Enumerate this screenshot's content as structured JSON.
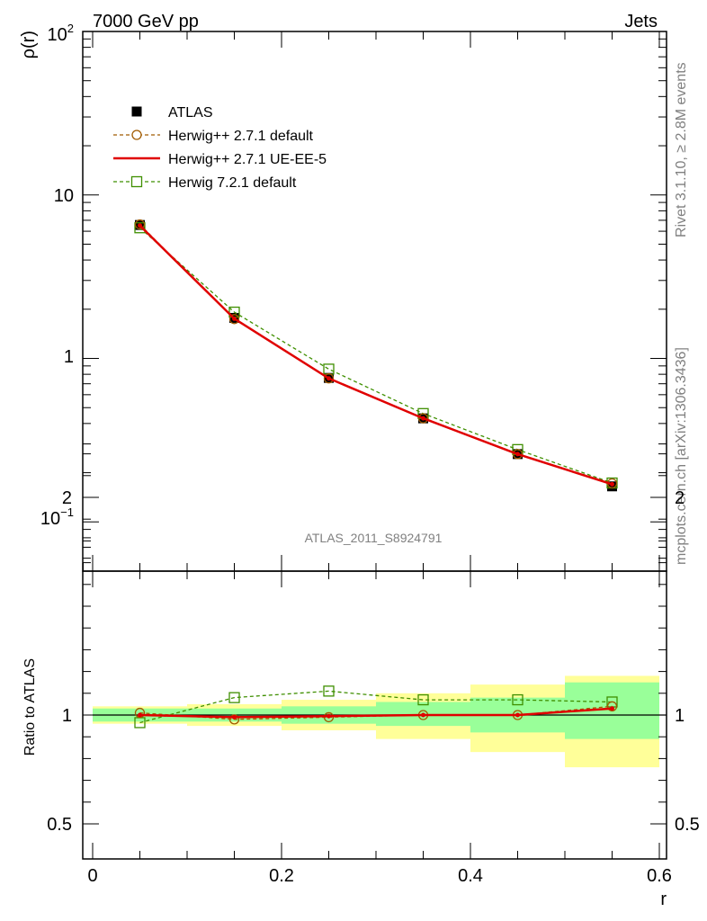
{
  "header": {
    "left": "7000 GeV pp",
    "right": "Jets"
  },
  "side_labels": {
    "rivet": "Rivet 3.1.10, ≥ 2.8M events",
    "mcplots": "mcplots.cern.ch [arXiv:1306.3436]"
  },
  "analysis_id": "ATLAS_2011_S8924791",
  "chart_data": [
    {
      "type": "line",
      "ylabel": "ρ(r)",
      "yscale": "log",
      "ylim": [
        0.05,
        100
      ],
      "xlim": [
        -0.015,
        0.6
      ],
      "ytick_labels": [
        "10−1",
        "1",
        "10",
        "10²"
      ],
      "legend_position": "top-left",
      "x": [
        0.05,
        0.15,
        0.25,
        0.35,
        0.45,
        0.55
      ],
      "x_bins": [
        [
          0.0,
          0.1
        ],
        [
          0.1,
          0.2
        ],
        [
          0.2,
          0.3
        ],
        [
          0.3,
          0.4
        ],
        [
          0.4,
          0.5
        ],
        [
          0.5,
          0.6
        ]
      ],
      "series": [
        {
          "name": "ATLAS",
          "style": "data",
          "color": "#000000",
          "values": [
            6.55,
            1.77,
            0.76,
            0.43,
            0.26,
            0.165
          ]
        },
        {
          "name": "Herwig++ 2.7.1 default",
          "style": "dashed-circle",
          "color": "#a05a00",
          "values": [
            6.6,
            1.74,
            0.755,
            0.43,
            0.26,
            0.172
          ]
        },
        {
          "name": "Herwig++ 2.7.1 UE-EE-5",
          "style": "solid",
          "color": "#e00000",
          "values": [
            6.5,
            1.75,
            0.755,
            0.43,
            0.26,
            0.17
          ]
        },
        {
          "name": "Herwig 7.2.1 default",
          "style": "dashed-square",
          "color": "#3f8f00",
          "values": [
            6.3,
            1.92,
            0.86,
            0.46,
            0.277,
            0.173
          ]
        }
      ]
    },
    {
      "type": "line",
      "ylabel": "Ratio to ATLAS",
      "xlabel": "r",
      "ylim": [
        0.4,
        2.3
      ],
      "yticks": [
        0.5,
        1,
        2
      ],
      "ytick_labels": [
        "0.5",
        "1",
        "2"
      ],
      "xticks": [
        0,
        0.2,
        0.4,
        0.6
      ],
      "xtick_labels": [
        "0",
        "0.2",
        "0.4",
        "0.6"
      ],
      "x": [
        0.05,
        0.15,
        0.25,
        0.35,
        0.45,
        0.55
      ],
      "bands": {
        "bins": [
          [
            0.0,
            0.1
          ],
          [
            0.1,
            0.2
          ],
          [
            0.2,
            0.3
          ],
          [
            0.3,
            0.4
          ],
          [
            0.4,
            0.5
          ],
          [
            0.5,
            0.6
          ]
        ],
        "inner": [
          [
            0.97,
            1.03
          ],
          [
            0.97,
            1.03
          ],
          [
            0.96,
            1.04
          ],
          [
            0.95,
            1.06
          ],
          [
            0.92,
            1.08
          ],
          [
            0.89,
            1.15
          ]
        ],
        "outer": [
          [
            0.96,
            1.04
          ],
          [
            0.95,
            1.05
          ],
          [
            0.93,
            1.07
          ],
          [
            0.89,
            1.1
          ],
          [
            0.83,
            1.14
          ],
          [
            0.76,
            1.18
          ]
        ],
        "inner_color": "#99ff99",
        "outer_color": "#ffff99"
      },
      "series": [
        {
          "name": "Herwig++ 2.7.1 default",
          "style": "dashed-circle",
          "color": "#a05a00",
          "values": [
            1.01,
            0.98,
            0.99,
            1.0,
            1.0,
            1.04
          ]
        },
        {
          "name": "Herwig++ 2.7.1 UE-EE-5",
          "style": "solid",
          "color": "#e00000",
          "values": [
            1.0,
            0.99,
            0.995,
            1.0,
            1.0,
            1.03
          ]
        },
        {
          "name": "Herwig 7.2.1 default",
          "style": "dashed-square",
          "color": "#3f8f00",
          "values": [
            0.965,
            1.08,
            1.11,
            1.07,
            1.07,
            1.06
          ]
        }
      ]
    }
  ]
}
